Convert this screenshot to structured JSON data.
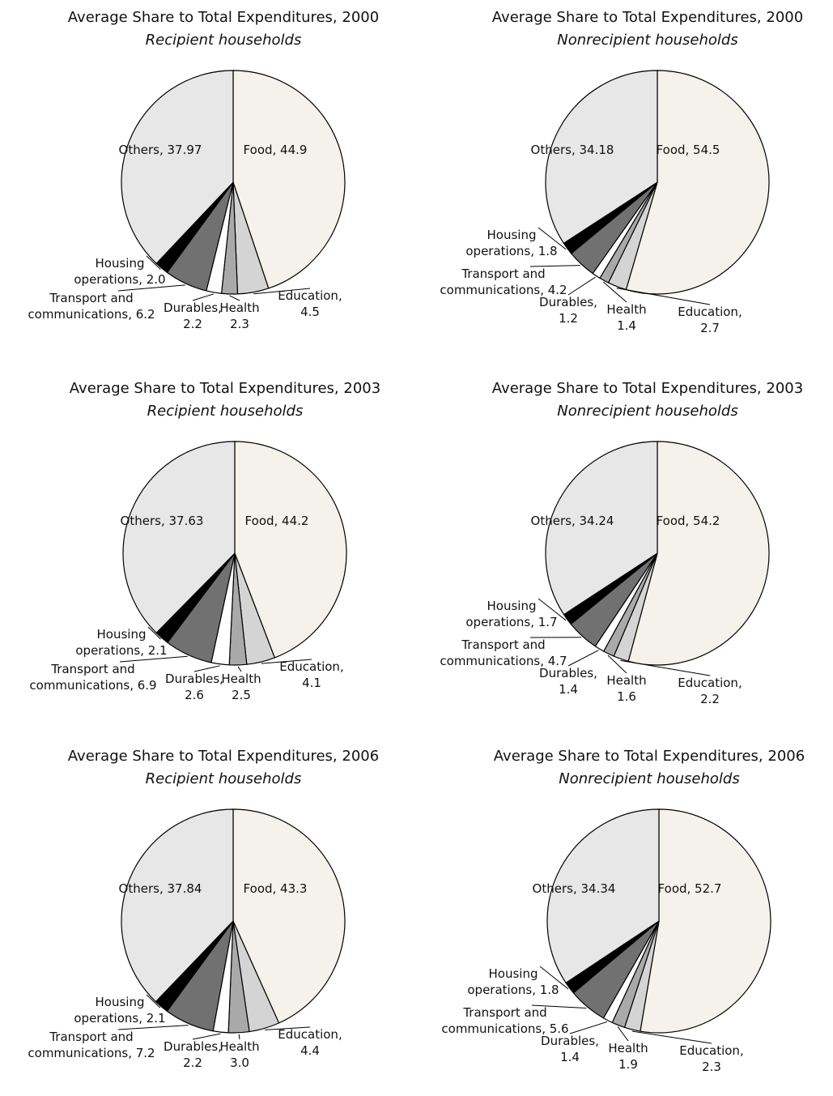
{
  "chart_data": [
    {
      "type": "pie",
      "title": "Average Share to Total Expenditures, 2000",
      "subtitle": "Recipient households",
      "labels": [
        "Food, 44.9",
        "Education,\n4.5",
        "Health\n2.3",
        "Durables,\n2.2",
        "Transport and\ncommunications, 6.2",
        "Housing\noperations, 2.0",
        "Others, 37.97"
      ],
      "values": [
        44.9,
        4.5,
        2.3,
        2.2,
        6.2,
        2.0,
        37.97
      ],
      "colors": [
        "#f4f2ea",
        "#d4d4d4",
        "#a9a9a9",
        "#ffffff",
        "#717171",
        "#000000",
        "#e6e7e6"
      ]
    },
    {
      "type": "pie",
      "title": "Average Share to Total Expenditures, 2000",
      "subtitle": "Nonrecipient households",
      "labels": [
        "Food, 54.5",
        "Education,\n2.7",
        "Health\n1.4",
        "Durables,\n1.2",
        "Transport and\ncommunications, 4.2",
        "Housing\noperations, 1.8",
        "Others, 34.18"
      ],
      "values": [
        54.5,
        2.7,
        1.4,
        1.2,
        4.2,
        1.8,
        34.18
      ],
      "colors": [
        "#f4f2ea",
        "#d4d4d4",
        "#a9a9a9",
        "#ffffff",
        "#717171",
        "#000000",
        "#e6e7e6"
      ]
    },
    {
      "type": "pie",
      "title": "Average Share to Total Expenditures, 2003",
      "subtitle": "Recipient households",
      "labels": [
        "Food, 44.2",
        "Education,\n4.1",
        "Health\n2.5",
        "Durables,\n2.6",
        "Transport and\ncommunications, 6.9",
        "Housing\noperations, 2.1",
        "Others, 37.63"
      ],
      "values": [
        44.2,
        4.1,
        2.5,
        2.6,
        6.9,
        2.1,
        37.63
      ],
      "colors": [
        "#f4f2ea",
        "#d4d4d4",
        "#a9a9a9",
        "#ffffff",
        "#717171",
        "#000000",
        "#e6e7e6"
      ]
    },
    {
      "type": "pie",
      "title": "Average Share to Total Expenditures, 2003",
      "subtitle": "Nonrecipient households",
      "labels": [
        "Food, 54.2",
        "Education,\n2.2",
        "Health\n1.6",
        "Durables,\n1.4",
        "Transport and\ncommunications, 4.7",
        "Housing\noperations, 1.7",
        "Others, 34.24"
      ],
      "values": [
        54.2,
        2.2,
        1.6,
        1.4,
        4.7,
        1.7,
        34.24
      ],
      "colors": [
        "#f4f2ea",
        "#d4d4d4",
        "#a9a9a9",
        "#ffffff",
        "#717171",
        "#000000",
        "#e6e7e6"
      ]
    },
    {
      "type": "pie",
      "title": "Average Share to Total Expenditures, 2006",
      "subtitle": "Recipient households",
      "labels": [
        "Food, 43.3",
        "Education,\n4.4",
        "Health\n3.0",
        "Durables,\n2.2",
        "Transport and\ncommunications, 7.2",
        "Housing\noperations, 2.1",
        "Others, 37.84"
      ],
      "values": [
        43.3,
        4.4,
        3.0,
        2.2,
        7.2,
        2.1,
        37.84
      ],
      "colors": [
        "#f4f2ea",
        "#d4d4d4",
        "#a9a9a9",
        "#ffffff",
        "#717171",
        "#000000",
        "#e6e7e6"
      ]
    },
    {
      "type": "pie",
      "title": "Average Share to Total Expenditures, 2006",
      "subtitle": "Nonrecipient households",
      "labels": [
        "Food, 52.7",
        "Education,\n2.3",
        "Health\n1.9",
        "Durables,\n1.4",
        "Transport and\ncommunications, 5.6",
        "Housing\noperations, 1.8",
        "Others, 34.34"
      ],
      "values": [
        52.7,
        2.3,
        1.9,
        1.4,
        5.6,
        1.8,
        34.34
      ],
      "colors": [
        "#f4f2ea",
        "#d4d4d4",
        "#a9a9a9",
        "#ffffff",
        "#717171",
        "#000000",
        "#e6e7e6"
      ]
    }
  ]
}
